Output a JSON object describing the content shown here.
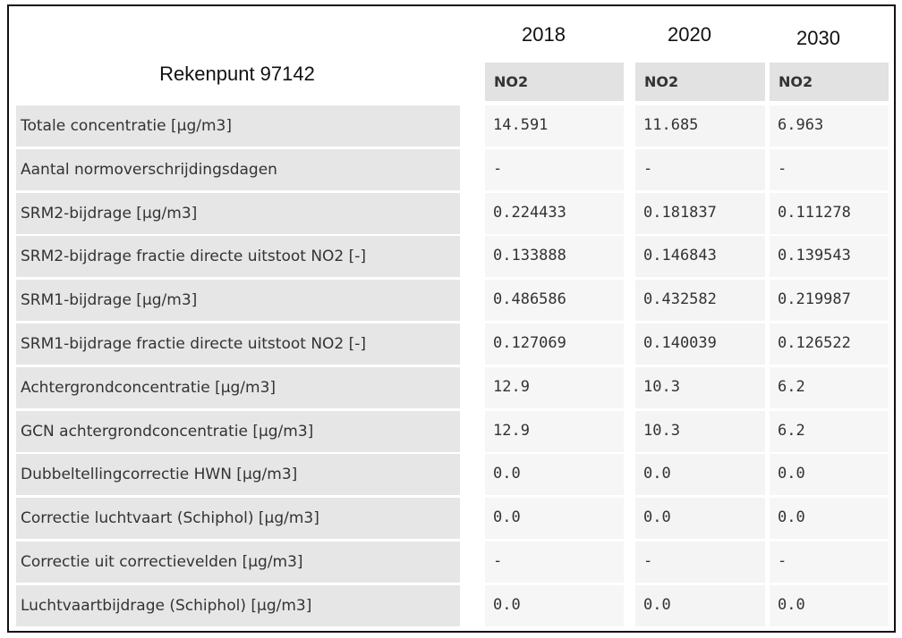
{
  "table": {
    "years": [
      "2018",
      "2020",
      "2030"
    ],
    "title": "Rekenpunt 97142",
    "substance": [
      "NO2",
      "NO2",
      "NO2"
    ],
    "rows": [
      {
        "label": "Totale concentratie [µg/m3]",
        "values": [
          "14.591",
          "11.685",
          "6.963"
        ]
      },
      {
        "label": "Aantal normoverschrijdingsdagen",
        "values": [
          "-",
          "-",
          "-"
        ]
      },
      {
        "label": "SRM2-bijdrage [µg/m3]",
        "values": [
          "0.224433",
          "0.181837",
          "0.111278"
        ]
      },
      {
        "label": "SRM2-bijdrage fractie directe uitstoot NO2 [-]",
        "values": [
          "0.133888",
          "0.146843",
          "0.139543"
        ]
      },
      {
        "label": "SRM1-bijdrage [µg/m3]",
        "values": [
          "0.486586",
          "0.432582",
          "0.219987"
        ]
      },
      {
        "label": "SRM1-bijdrage fractie directe uitstoot NO2 [-]",
        "values": [
          "0.127069",
          "0.140039",
          "0.126522"
        ]
      },
      {
        "label": "Achtergrondconcentratie [µg/m3]",
        "values": [
          "12.9",
          "10.3",
          "6.2"
        ]
      },
      {
        "label": "GCN achtergrondconcentratie [µg/m3]",
        "values": [
          "12.9",
          "10.3",
          "6.2"
        ]
      },
      {
        "label": "Dubbeltellingcorrectie HWN [µg/m3]",
        "values": [
          "0.0",
          "0.0",
          "0.0"
        ]
      },
      {
        "label": "Correctie luchtvaart (Schiphol) [µg/m3]",
        "values": [
          "0.0",
          "0.0",
          "0.0"
        ]
      },
      {
        "label": "Correctie uit correctievelden [µg/m3]",
        "values": [
          "-",
          "-",
          "-"
        ]
      },
      {
        "label": "Luchtvaartbijdrage (Schiphol) [µg/m3]",
        "values": [
          "0.0",
          "0.0",
          "0.0"
        ]
      }
    ]
  }
}
